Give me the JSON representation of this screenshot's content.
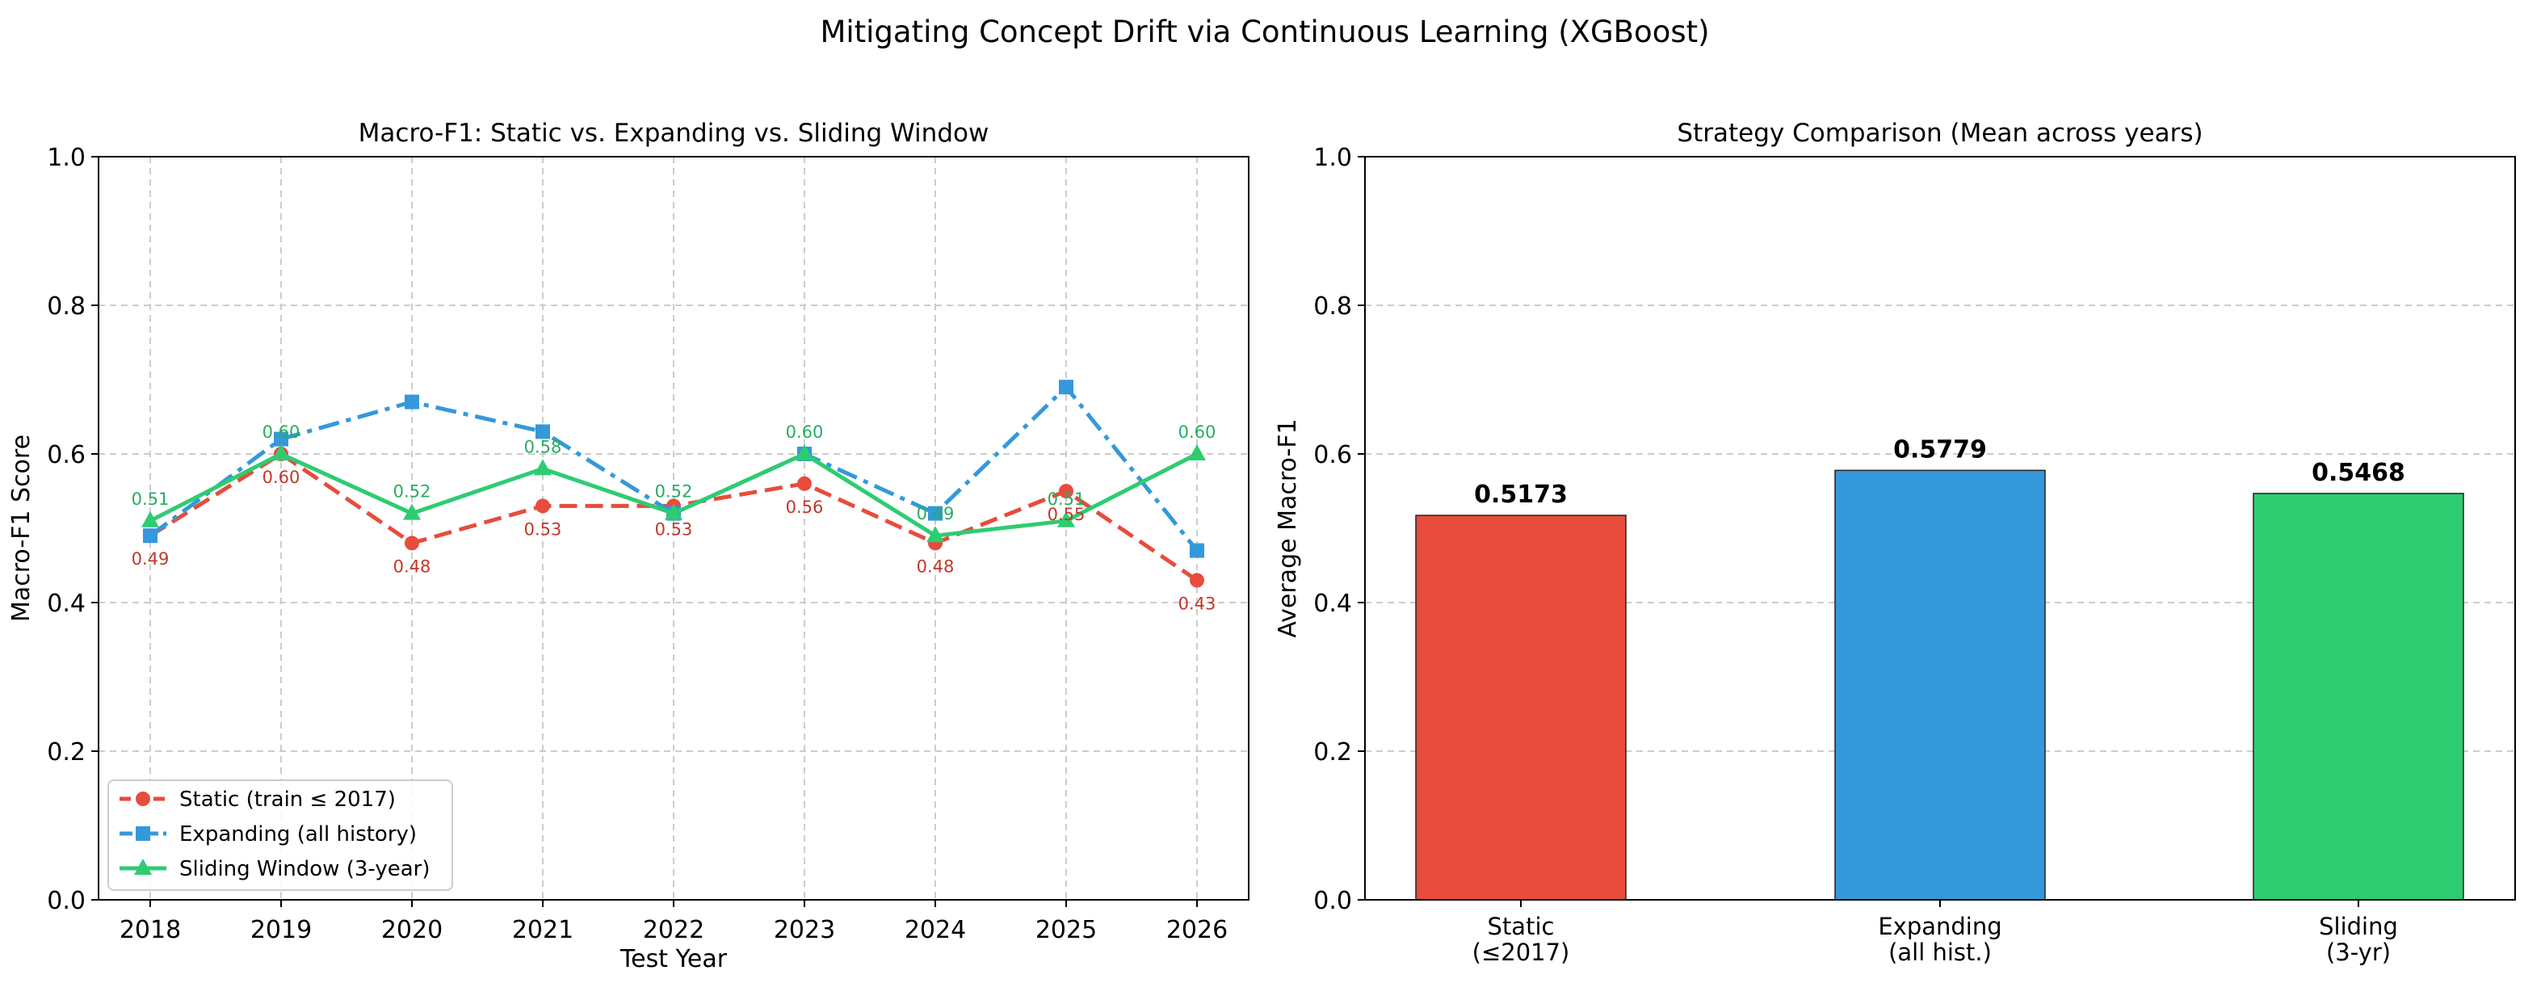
{
  "figure": {
    "suptitle": "Mitigating Concept Drift via Continuous Learning (XGBoost)"
  },
  "colors": {
    "static": "#e74c3c",
    "expanding": "#3498db",
    "sliding": "#2ecc71",
    "static_label": "#c0392b",
    "sliding_label": "#27ae60",
    "grid": "#cccccc",
    "axis": "#000000"
  },
  "chart_data": [
    {
      "type": "line",
      "title": "Macro-F1: Static vs. Expanding vs. Sliding Window",
      "xlabel": "Test Year",
      "ylabel": "Macro-F1 Score",
      "ylim": [
        0.0,
        1.0
      ],
      "yticks": [
        "0.0",
        "0.2",
        "0.4",
        "0.6",
        "0.8",
        "1.0"
      ],
      "categories": [
        "2018",
        "2019",
        "2020",
        "2021",
        "2022",
        "2023",
        "2024",
        "2025",
        "2026"
      ],
      "grid": true,
      "legend_position": "lower-left",
      "series": [
        {
          "name": "Static (train ≤ 2017)",
          "key": "static",
          "marker": "circle",
          "linestyle": "dashed",
          "values": [
            0.49,
            0.6,
            0.48,
            0.53,
            0.53,
            0.56,
            0.48,
            0.55,
            0.43
          ],
          "labels": [
            "0.49",
            "0.60",
            "0.48",
            "0.53",
            "0.53",
            "0.56",
            "0.48",
            "0.55",
            "0.43"
          ]
        },
        {
          "name": "Expanding (all history)",
          "key": "expanding",
          "marker": "square",
          "linestyle": "dashdot",
          "values": [
            0.49,
            0.62,
            0.67,
            0.63,
            0.52,
            0.6,
            0.52,
            0.69,
            0.47
          ],
          "labels": []
        },
        {
          "name": "Sliding Window (3-year)",
          "key": "sliding",
          "marker": "triangle",
          "linestyle": "solid",
          "values": [
            0.51,
            0.6,
            0.52,
            0.58,
            0.52,
            0.6,
            0.49,
            0.51,
            0.6
          ],
          "labels": [
            "0.51",
            "0.60",
            "0.52",
            "0.58",
            "0.52",
            "0.60",
            "0.49",
            "0.51",
            "0.60"
          ]
        }
      ]
    },
    {
      "type": "bar",
      "title": "Strategy Comparison (Mean across years)",
      "xlabel": "",
      "ylabel": "Average Macro-F1",
      "ylim": [
        0.0,
        1.0
      ],
      "yticks": [
        "0.0",
        "0.2",
        "0.4",
        "0.6",
        "0.8",
        "1.0"
      ],
      "grid": true,
      "categories": [
        [
          "Static",
          "(≤2017)"
        ],
        [
          "Expanding",
          "(all hist.)"
        ],
        [
          "Sliding",
          "(3-yr)"
        ]
      ],
      "values": [
        0.5173,
        0.5779,
        0.5468
      ],
      "value_labels": [
        "0.5173",
        "0.5779",
        "0.5468"
      ],
      "bar_colors": [
        "#e74c3c",
        "#3498db",
        "#2ecc71"
      ]
    }
  ]
}
